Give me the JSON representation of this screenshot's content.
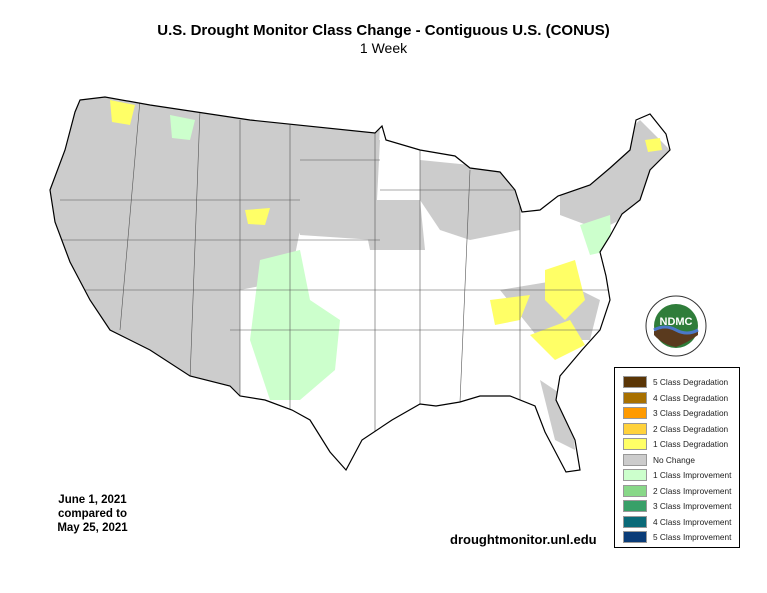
{
  "title": "U.S. Drought Monitor Class Change - Contiguous U.S. (CONUS)",
  "subtitle": "1 Week",
  "date_text": {
    "line1": "June 1, 2021",
    "line2": "compared to",
    "line3": "May 25, 2021"
  },
  "url": "droughtmonitor.unl.edu",
  "logo": {
    "abbr": "NDMC",
    "top_text": "NATIONAL DROUGHT MITIGATION CENTER",
    "bottom_text": "UNIVERSITY OF NEBRASKA"
  },
  "legend": [
    {
      "label": "5 Class Degradation",
      "color": "#5a3506"
    },
    {
      "label": "4 Class Degradation",
      "color": "#a87000"
    },
    {
      "label": "3 Class Degradation",
      "color": "#ff9a00"
    },
    {
      "label": "2 Class Degradation",
      "color": "#ffd23c"
    },
    {
      "label": "1 Class Degradation",
      "color": "#ffff66"
    },
    {
      "label": "No Change",
      "color": "#cccccc"
    },
    {
      "label": "1 Class Improvement",
      "color": "#ccffcc"
    },
    {
      "label": "2 Class Improvement",
      "color": "#88d888"
    },
    {
      "label": "3 Class Improvement",
      "color": "#38a068"
    },
    {
      "label": "4 Class Improvement",
      "color": "#0a6a78"
    },
    {
      "label": "5 Class Improvement",
      "color": "#0a3c78"
    }
  ]
}
